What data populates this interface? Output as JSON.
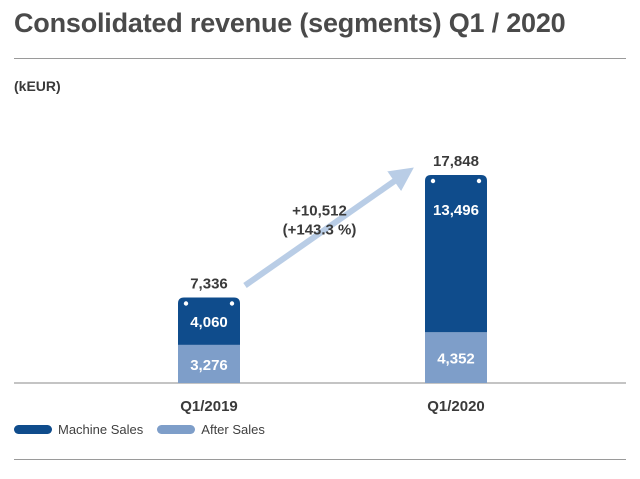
{
  "title": "Consolidated revenue (segments) Q1 / 2020",
  "unit_label": "(kEUR)",
  "colors": {
    "machine_sales": "#0f4c8c",
    "after_sales": "#7e9ec9",
    "arrow": "#b9cde6",
    "text": "#3a3a3a"
  },
  "chart_data": {
    "type": "bar",
    "stacked": true,
    "categories": [
      "Q1/2019",
      "Q1/2020"
    ],
    "series": [
      {
        "name": "After Sales",
        "values": [
          3276,
          4352
        ],
        "labels": [
          "3,276",
          "4,352"
        ]
      },
      {
        "name": "Machine Sales",
        "values": [
          4060,
          13496
        ],
        "labels": [
          "4,060",
          "13,496"
        ]
      }
    ],
    "totals": [
      7336,
      17848
    ],
    "total_labels": [
      "7,336",
      "17,848"
    ],
    "change_annotation": [
      "+10,512",
      "(+143.3 %)"
    ],
    "title": "Consolidated revenue (segments) Q1 / 2020",
    "ylabel": "(kEUR)",
    "ylim": [
      0,
      17848
    ],
    "grid": false,
    "legend": "bottom-left",
    "legend_order": [
      "Machine Sales",
      "After Sales"
    ]
  }
}
